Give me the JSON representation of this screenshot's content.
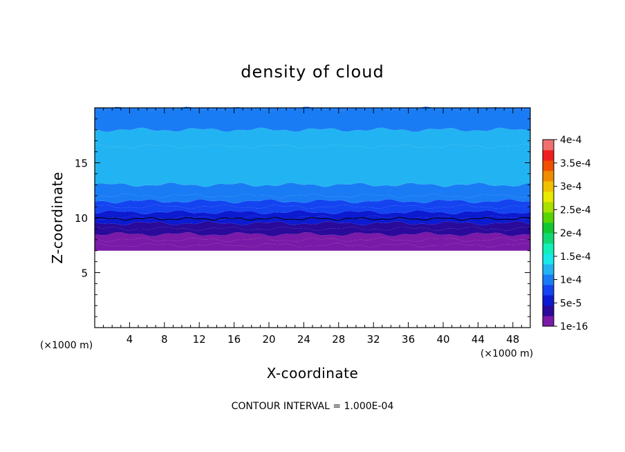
{
  "chart_data": {
    "type": "heatmap",
    "title": "density of cloud",
    "xlabel": "X-coordinate",
    "ylabel": "Z-coordinate",
    "x_unit": "(×1000 m)",
    "y_unit": "(×1000 m)",
    "xlim": [
      0,
      50
    ],
    "ylim": [
      0,
      20
    ],
    "x_ticks": [
      4,
      8,
      12,
      16,
      20,
      24,
      28,
      32,
      36,
      40,
      44,
      48
    ],
    "y_ticks": [
      5,
      10,
      15
    ],
    "footer": "CONTOUR INTERVAL = 1.000E-04",
    "colorbar": {
      "range": [
        0,
        0.0004
      ],
      "tick_values": [
        1e-16,
        5e-05,
        0.0001,
        0.00015,
        0.0002,
        0.00025,
        0.0003,
        0.00035,
        0.0004
      ],
      "tick_labels": [
        "1e-16",
        "5e-5",
        "1e-4",
        "1.5e-4",
        "2e-4",
        "2.5e-4",
        "3e-4",
        "3.5e-4",
        "4e-4"
      ],
      "colors": [
        "#7a1aa8",
        "#2a0a9a",
        "#0c1ad0",
        "#1444f0",
        "#1a7cf4",
        "#22b4f2",
        "#18e8e8",
        "#10f0b8",
        "#10d874",
        "#10c830",
        "#58d400",
        "#a8e000",
        "#e8e800",
        "#f0c000",
        "#f08c00",
        "#f05000",
        "#f01e1e",
        "#f07070"
      ]
    },
    "vertical_profile": [
      {
        "z": 7.0,
        "value": 1e-16
      },
      {
        "z": 7.5,
        "value": 1e-05
      },
      {
        "z": 8.0,
        "value": 2e-05
      },
      {
        "z": 8.5,
        "value": 3e-05
      },
      {
        "z": 9.0,
        "value": 4e-05
      },
      {
        "z": 9.5,
        "value": 5e-05
      },
      {
        "z": 10.0,
        "value": 6e-05
      },
      {
        "z": 10.5,
        "value": 7e-05
      },
      {
        "z": 11.0,
        "value": 8e-05
      },
      {
        "z": 11.5,
        "value": 9e-05
      },
      {
        "z": 12.0,
        "value": 0.0001
      },
      {
        "z": 13.0,
        "value": 0.000125
      },
      {
        "z": 16.5,
        "value": 0.000125
      },
      {
        "z": 18.0,
        "value": 0.0001
      },
      {
        "z": 19.9,
        "value": 0.0001
      }
    ],
    "contour_lines": [
      {
        "value": 5e-05,
        "z": 9.9
      }
    ]
  }
}
